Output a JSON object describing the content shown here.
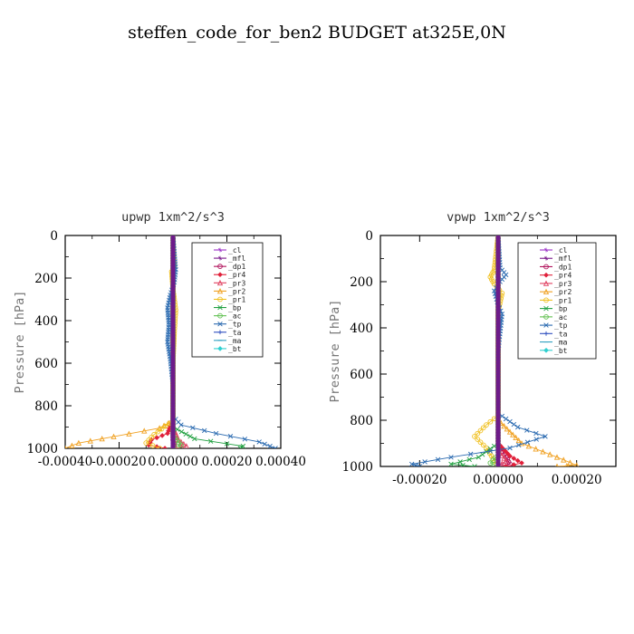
{
  "title": "steffen_code_for_ben2  BUDGET at325E,0N",
  "chart_data": [
    {
      "type": "line",
      "title": "upwp  1xm^2/s^3",
      "ylabel": "Pressure [hPa]",
      "xlim": [
        -0.0004,
        0.0004
      ],
      "ylim": [
        1000,
        0
      ],
      "y_inverted": true,
      "xticks": [
        "-0.00040",
        "-0.00020",
        "0.00000",
        "0.00020",
        "0.00040"
      ],
      "xtick_values": [
        -0.0004,
        -0.0002,
        0.0,
        0.0002,
        0.0004
      ],
      "yticks": [
        "0",
        "200",
        "400",
        "600",
        "800",
        "1000"
      ],
      "ytick_values": [
        0,
        200,
        400,
        600,
        800,
        1000
      ],
      "legend_position": "top-right",
      "series": [
        {
          "name": "_cl",
          "color": "#9b30c8",
          "points": [
            [
              0,
              0
            ],
            [
              0,
              200
            ],
            [
              0,
              400
            ],
            [
              0,
              600
            ],
            [
              0,
              800
            ],
            [
              0,
              1000
            ]
          ]
        },
        {
          "name": "_mfl",
          "color": "#7a1a8c",
          "points": [
            [
              0,
              0
            ],
            [
              0,
              200
            ],
            [
              0,
              400
            ],
            [
              0,
              600
            ],
            [
              0,
              800
            ],
            [
              0,
              1000
            ]
          ]
        },
        {
          "name": "_dp1",
          "color": "#b0105a",
          "points": [
            [
              0,
              0
            ],
            [
              0,
              200
            ],
            [
              0,
              400
            ],
            [
              0,
              600
            ],
            [
              0,
              800
            ],
            [
              0,
              960
            ],
            [
              5e-06,
              990
            ],
            [
              0,
              1000
            ]
          ]
        },
        {
          "name": "_pr4",
          "color": "#e0203a",
          "points": [
            [
              0,
              0
            ],
            [
              0,
              860
            ],
            [
              -2e-05,
              930
            ],
            [
              -8e-05,
              960
            ],
            [
              -9e-05,
              985
            ],
            [
              -3e-05,
              1000
            ]
          ]
        },
        {
          "name": "_pr3",
          "color": "#e04060",
          "points": [
            [
              0,
              0
            ],
            [
              0,
              900
            ],
            [
              2e-05,
              960
            ],
            [
              5e-05,
              990
            ],
            [
              1e-05,
              1000
            ]
          ]
        },
        {
          "name": "_pr2",
          "color": "#f0a020",
          "points": [
            [
              0,
              0
            ],
            [
              0,
              800
            ],
            [
              0,
              870
            ],
            [
              -5e-05,
              905
            ],
            [
              -0.00022,
              945
            ],
            [
              -0.00035,
              975
            ],
            [
              -0.0004,
              1000
            ]
          ]
        },
        {
          "name": "_pr1",
          "color": "#f0c020",
          "points": [
            [
              0,
              0
            ],
            [
              5e-06,
              150
            ],
            [
              -5e-06,
              170
            ],
            [
              0,
              250
            ],
            [
              1e-05,
              350
            ],
            [
              5e-06,
              450
            ],
            [
              0,
              600
            ],
            [
              0,
              870
            ],
            [
              -7e-05,
              935
            ],
            [
              -0.0001,
              975
            ],
            [
              -5e-05,
              1000
            ]
          ]
        },
        {
          "name": "_bp",
          "color": "#20a040",
          "points": [
            [
              0,
              0
            ],
            [
              0,
              900
            ],
            [
              8e-05,
              955
            ],
            [
              0.00026,
              990
            ],
            [
              0.00025,
              1000
            ]
          ]
        },
        {
          "name": "_ac",
          "color": "#60c050",
          "points": [
            [
              0,
              0
            ],
            [
              0,
              940
            ],
            [
              3e-05,
              985
            ],
            [
              0,
              1000
            ]
          ]
        },
        {
          "name": "_tp",
          "color": "#2a6ab0",
          "points": [
            [
              0,
              0
            ],
            [
              1e-05,
              160
            ],
            [
              5e-06,
              220
            ],
            [
              -1e-05,
              280
            ],
            [
              -2e-05,
              340
            ],
            [
              -1.5e-05,
              420
            ],
            [
              -2e-05,
              500
            ],
            [
              -1e-05,
              580
            ],
            [
              0,
              700
            ],
            [
              0,
              850
            ],
            [
              3e-05,
              890
            ],
            [
              0.00016,
              930
            ],
            [
              0.00032,
              970
            ],
            [
              0.00038,
              1000
            ]
          ]
        },
        {
          "name": "_ta",
          "color": "#3050c0",
          "points": [
            [
              0,
              0
            ],
            [
              0,
              800
            ],
            [
              0,
              1000
            ]
          ]
        },
        {
          "name": "_ma",
          "color": "#30a0c0",
          "points": [
            [
              0,
              0
            ],
            [
              0,
              1000
            ]
          ]
        },
        {
          "name": "_bt",
          "color": "#30d0d0",
          "points": [
            [
              0,
              0
            ],
            [
              0,
              1000
            ]
          ]
        }
      ]
    },
    {
      "type": "line",
      "title": "vpwp  1xm^2/s^3",
      "ylabel": "Pressure [hPa]",
      "xlim": [
        -0.0003,
        0.0003
      ],
      "ylim": [
        1000,
        0
      ],
      "y_inverted": true,
      "xticks": [
        "-0.00020",
        "0.00000",
        "0.00020"
      ],
      "xtick_values": [
        -0.0002,
        0.0,
        0.0002
      ],
      "yticks": [
        "0",
        "200",
        "400",
        "600",
        "800",
        "1000"
      ],
      "ytick_values": [
        0,
        200,
        400,
        600,
        800,
        1000
      ],
      "legend_position": "top-right",
      "series": [
        {
          "name": "_cl",
          "color": "#9b30c8",
          "points": [
            [
              0,
              0
            ],
            [
              0,
              200
            ],
            [
              0,
              400
            ],
            [
              0,
              600
            ],
            [
              0,
              800
            ],
            [
              0,
              1000
            ]
          ]
        },
        {
          "name": "_mfl",
          "color": "#7a1a8c",
          "points": [
            [
              0,
              0
            ],
            [
              0,
              200
            ],
            [
              0,
              400
            ],
            [
              0,
              600
            ],
            [
              0,
              800
            ],
            [
              0,
              1000
            ]
          ]
        },
        {
          "name": "_dp1",
          "color": "#b0105a",
          "points": [
            [
              0,
              0
            ],
            [
              0,
              900
            ],
            [
              2e-05,
              960
            ],
            [
              3e-05,
              990
            ],
            [
              0,
              1000
            ]
          ]
        },
        {
          "name": "_pr4",
          "color": "#e0203a",
          "points": [
            [
              0,
              0
            ],
            [
              0,
              900
            ],
            [
              3e-05,
              955
            ],
            [
              6e-05,
              985
            ],
            [
              2e-05,
              1000
            ]
          ]
        },
        {
          "name": "_pr3",
          "color": "#e04060",
          "points": [
            [
              0,
              0
            ],
            [
              0,
              930
            ],
            [
              2e-05,
              975
            ],
            [
              0,
              1000
            ]
          ]
        },
        {
          "name": "_pr2",
          "color": "#f0a020",
          "points": [
            [
              0,
              0
            ],
            [
              0,
              800
            ],
            [
              6e-05,
              900
            ],
            [
              0.00015,
              960
            ],
            [
              0.0002,
              995
            ],
            [
              0.00015,
              1000
            ]
          ]
        },
        {
          "name": "_pr1",
          "color": "#f0c020",
          "points": [
            [
              0,
              0
            ],
            [
              -1e-05,
              150
            ],
            [
              -2e-05,
              180
            ],
            [
              -1e-05,
              210
            ],
            [
              1e-05,
              250
            ],
            [
              0,
              330
            ],
            [
              0,
              780
            ],
            [
              -3e-05,
              820
            ],
            [
              -6e-05,
              870
            ],
            [
              -3e-05,
              920
            ],
            [
              0,
              1000
            ]
          ]
        },
        {
          "name": "_bp",
          "color": "#20a040",
          "points": [
            [
              0,
              0
            ],
            [
              0,
              900
            ],
            [
              -5e-05,
              960
            ],
            [
              -0.00012,
              990
            ],
            [
              -6e-05,
              1000
            ]
          ]
        },
        {
          "name": "_ac",
          "color": "#60c050",
          "points": [
            [
              0,
              0
            ],
            [
              0,
              950
            ],
            [
              -2e-05,
              985
            ],
            [
              0,
              1000
            ]
          ]
        },
        {
          "name": "_tp",
          "color": "#2a6ab0",
          "points": [
            [
              0,
              0
            ],
            [
              5e-06,
              140
            ],
            [
              2e-05,
              170
            ],
            [
              5e-06,
              200
            ],
            [
              -1e-05,
              240
            ],
            [
              0,
              300
            ],
            [
              1e-05,
              340
            ],
            [
              0,
              500
            ],
            [
              0,
              770
            ],
            [
              5e-05,
              830
            ],
            [
              0.00012,
              870
            ],
            [
              3e-05,
              920
            ],
            [
              -0.00012,
              960
            ],
            [
              -0.00022,
              990
            ],
            [
              -0.0002,
              1000
            ]
          ]
        },
        {
          "name": "_ta",
          "color": "#3050c0",
          "points": [
            [
              0,
              0
            ],
            [
              0,
              1000
            ]
          ]
        },
        {
          "name": "_ma",
          "color": "#30a0c0",
          "points": [
            [
              0,
              0
            ],
            [
              0,
              1000
            ]
          ]
        },
        {
          "name": "_bt",
          "color": "#30d0d0",
          "points": [
            [
              0,
              0
            ],
            [
              0,
              1000
            ]
          ]
        }
      ]
    }
  ]
}
